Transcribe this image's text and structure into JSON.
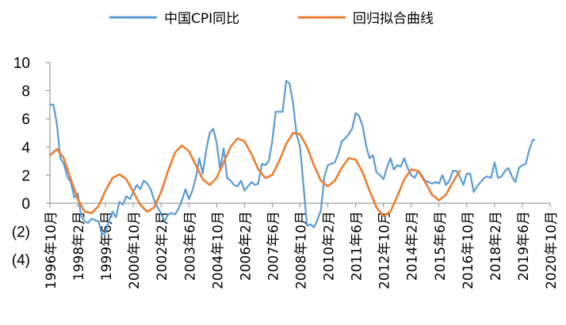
{
  "chart_data": {
    "type": "line",
    "title": "",
    "xlabel": "",
    "ylabel": "",
    "ylim": [
      -4,
      10
    ],
    "yticks": [
      10,
      8,
      6,
      4,
      2,
      0,
      -2,
      -4
    ],
    "ytick_labels": [
      "10",
      "8",
      "6",
      "4",
      "2",
      "0",
      "(2)",
      "(4)"
    ],
    "xticks": [
      {
        "x": "1996-10",
        "label": "1996年10月"
      },
      {
        "x": "1998-02",
        "label": "1998年2月"
      },
      {
        "x": "1999-06",
        "label": "1999年6月"
      },
      {
        "x": "2000-10",
        "label": "2000年10月"
      },
      {
        "x": "2002-02",
        "label": "2002年2月"
      },
      {
        "x": "2003-06",
        "label": "2003年6月"
      },
      {
        "x": "2004-10",
        "label": "2004年10月"
      },
      {
        "x": "2006-02",
        "label": "2006年2月"
      },
      {
        "x": "2007-06",
        "label": "2007年6月"
      },
      {
        "x": "2008-10",
        "label": "2008年10月"
      },
      {
        "x": "2010-02",
        "label": "2010年2月"
      },
      {
        "x": "2011-06",
        "label": "2011年6月"
      },
      {
        "x": "2012-10",
        "label": "2012年10月"
      },
      {
        "x": "2014-02",
        "label": "2014年2月"
      },
      {
        "x": "2015-06",
        "label": "2015年6月"
      },
      {
        "x": "2016-10",
        "label": "2016年10月"
      },
      {
        "x": "2018-02",
        "label": "2018年2月"
      },
      {
        "x": "2019-06",
        "label": "2019年6月"
      },
      {
        "x": "2020-10",
        "label": "2020年10月"
      }
    ],
    "grid": false,
    "legend_position": "top",
    "series": [
      {
        "name": "中国CPI同比",
        "color": "#5b9bd5",
        "points": [
          [
            "1996-10",
            7.0
          ],
          [
            "1996-12",
            7.0
          ],
          [
            "1997-02",
            5.6
          ],
          [
            "1997-04",
            3.2
          ],
          [
            "1997-06",
            2.8
          ],
          [
            "1997-08",
            1.9
          ],
          [
            "1997-10",
            1.5
          ],
          [
            "1997-12",
            0.4
          ],
          [
            "1998-02",
            0.7
          ],
          [
            "1998-04",
            -0.9
          ],
          [
            "1998-06",
            -1.3
          ],
          [
            "1998-08",
            -1.4
          ],
          [
            "1998-10",
            -1.1
          ],
          [
            "1998-12",
            -1.2
          ],
          [
            "1999-02",
            -1.3
          ],
          [
            "1999-04",
            -2.2
          ],
          [
            "1999-06",
            -2.1
          ],
          [
            "1999-08",
            -1.2
          ],
          [
            "1999-10",
            -0.6
          ],
          [
            "1999-12",
            -1.0
          ],
          [
            "2000-02",
            0.1
          ],
          [
            "2000-04",
            -0.1
          ],
          [
            "2000-06",
            0.5
          ],
          [
            "2000-08",
            0.3
          ],
          [
            "2000-10",
            0.8
          ],
          [
            "2000-12",
            1.3
          ],
          [
            "2001-02",
            1.0
          ],
          [
            "2001-04",
            1.6
          ],
          [
            "2001-06",
            1.4
          ],
          [
            "2001-08",
            1.0
          ],
          [
            "2001-10",
            0.2
          ],
          [
            "2001-12",
            -0.3
          ],
          [
            "2002-02",
            -0.7
          ],
          [
            "2002-04",
            -1.3
          ],
          [
            "2002-06",
            -0.8
          ],
          [
            "2002-08",
            -0.7
          ],
          [
            "2002-10",
            -0.8
          ],
          [
            "2002-12",
            -0.4
          ],
          [
            "2003-02",
            0.2
          ],
          [
            "2003-04",
            1.0
          ],
          [
            "2003-06",
            0.3
          ],
          [
            "2003-08",
            0.9
          ],
          [
            "2003-10",
            1.8
          ],
          [
            "2003-12",
            3.2
          ],
          [
            "2004-02",
            2.1
          ],
          [
            "2004-04",
            3.8
          ],
          [
            "2004-06",
            5.0
          ],
          [
            "2004-08",
            5.3
          ],
          [
            "2004-10",
            4.3
          ],
          [
            "2004-12",
            2.4
          ],
          [
            "2005-02",
            3.9
          ],
          [
            "2005-04",
            1.8
          ],
          [
            "2005-06",
            1.6
          ],
          [
            "2005-08",
            1.3
          ],
          [
            "2005-10",
            1.2
          ],
          [
            "2005-12",
            1.6
          ],
          [
            "2006-02",
            0.9
          ],
          [
            "2006-04",
            1.2
          ],
          [
            "2006-06",
            1.5
          ],
          [
            "2006-08",
            1.3
          ],
          [
            "2006-10",
            1.4
          ],
          [
            "2006-12",
            2.8
          ],
          [
            "2007-02",
            2.7
          ],
          [
            "2007-04",
            3.0
          ],
          [
            "2007-06",
            4.4
          ],
          [
            "2007-08",
            6.5
          ],
          [
            "2007-10",
            6.5
          ],
          [
            "2007-12",
            6.5
          ],
          [
            "2008-02",
            8.7
          ],
          [
            "2008-04",
            8.5
          ],
          [
            "2008-06",
            7.1
          ],
          [
            "2008-08",
            4.9
          ],
          [
            "2008-10",
            4.0
          ],
          [
            "2008-12",
            1.2
          ],
          [
            "2009-02",
            -1.6
          ],
          [
            "2009-04",
            -1.5
          ],
          [
            "2009-06",
            -1.7
          ],
          [
            "2009-08",
            -1.2
          ],
          [
            "2009-10",
            -0.5
          ],
          [
            "2009-12",
            1.9
          ],
          [
            "2010-02",
            2.7
          ],
          [
            "2010-04",
            2.8
          ],
          [
            "2010-06",
            2.9
          ],
          [
            "2010-08",
            3.5
          ],
          [
            "2010-10",
            4.4
          ],
          [
            "2010-12",
            4.6
          ],
          [
            "2011-02",
            4.9
          ],
          [
            "2011-04",
            5.3
          ],
          [
            "2011-06",
            6.4
          ],
          [
            "2011-08",
            6.2
          ],
          [
            "2011-10",
            5.5
          ],
          [
            "2011-12",
            4.1
          ],
          [
            "2012-02",
            3.2
          ],
          [
            "2012-04",
            3.4
          ],
          [
            "2012-06",
            2.2
          ],
          [
            "2012-08",
            2.0
          ],
          [
            "2012-10",
            1.7
          ],
          [
            "2012-12",
            2.5
          ],
          [
            "2013-02",
            3.2
          ],
          [
            "2013-04",
            2.4
          ],
          [
            "2013-06",
            2.7
          ],
          [
            "2013-08",
            2.6
          ],
          [
            "2013-10",
            3.2
          ],
          [
            "2013-12",
            2.5
          ],
          [
            "2014-02",
            2.0
          ],
          [
            "2014-04",
            1.8
          ],
          [
            "2014-06",
            2.3
          ],
          [
            "2014-08",
            2.0
          ],
          [
            "2014-10",
            1.6
          ],
          [
            "2014-12",
            1.5
          ],
          [
            "2015-02",
            1.4
          ],
          [
            "2015-04",
            1.5
          ],
          [
            "2015-06",
            1.4
          ],
          [
            "2015-08",
            2.0
          ],
          [
            "2015-10",
            1.3
          ],
          [
            "2015-12",
            1.6
          ],
          [
            "2016-02",
            2.3
          ],
          [
            "2016-04",
            2.3
          ],
          [
            "2016-06",
            1.9
          ],
          [
            "2016-08",
            1.3
          ],
          [
            "2016-10",
            2.1
          ],
          [
            "2016-12",
            2.1
          ],
          [
            "2017-02",
            0.8
          ],
          [
            "2017-04",
            1.2
          ],
          [
            "2017-06",
            1.5
          ],
          [
            "2017-08",
            1.8
          ],
          [
            "2017-10",
            1.9
          ],
          [
            "2017-12",
            1.8
          ],
          [
            "2018-02",
            2.9
          ],
          [
            "2018-04",
            1.8
          ],
          [
            "2018-06",
            1.9
          ],
          [
            "2018-08",
            2.3
          ],
          [
            "2018-10",
            2.5
          ],
          [
            "2018-12",
            1.9
          ],
          [
            "2019-02",
            1.5
          ],
          [
            "2019-04",
            2.5
          ],
          [
            "2019-06",
            2.7
          ],
          [
            "2019-08",
            2.8
          ],
          [
            "2019-10",
            3.8
          ],
          [
            "2019-12",
            4.5
          ],
          [
            "2020-01",
            4.5
          ]
        ]
      },
      {
        "name": "回归拟合曲线",
        "color": "#ed7d31",
        "points": [
          [
            "1996-10",
            3.4
          ],
          [
            "1997-02",
            3.85
          ],
          [
            "1997-06",
            3.2
          ],
          [
            "1997-10",
            1.7
          ],
          [
            "1998-02",
            0.3
          ],
          [
            "1998-06",
            -0.6
          ],
          [
            "1998-10",
            -0.7
          ],
          [
            "1999-02",
            -0.2
          ],
          [
            "1999-06",
            0.9
          ],
          [
            "1999-10",
            1.8
          ],
          [
            "2000-02",
            2.05
          ],
          [
            "2000-06",
            1.7
          ],
          [
            "2000-10",
            0.8
          ],
          [
            "2001-02",
            -0.1
          ],
          [
            "2001-06",
            -0.6
          ],
          [
            "2001-10",
            -0.3
          ],
          [
            "2002-02",
            0.8
          ],
          [
            "2002-06",
            2.3
          ],
          [
            "2002-10",
            3.6
          ],
          [
            "2003-02",
            4.1
          ],
          [
            "2003-06",
            3.7
          ],
          [
            "2003-10",
            2.7
          ],
          [
            "2004-02",
            1.7
          ],
          [
            "2004-06",
            1.3
          ],
          [
            "2004-10",
            1.8
          ],
          [
            "2005-02",
            2.9
          ],
          [
            "2005-06",
            4.0
          ],
          [
            "2005-10",
            4.6
          ],
          [
            "2006-02",
            4.4
          ],
          [
            "2006-06",
            3.5
          ],
          [
            "2006-10",
            2.4
          ],
          [
            "2007-02",
            1.8
          ],
          [
            "2007-06",
            2.0
          ],
          [
            "2007-10",
            3.0
          ],
          [
            "2008-02",
            4.2
          ],
          [
            "2008-06",
            5.0
          ],
          [
            "2008-10",
            4.9
          ],
          [
            "2009-02",
            4.0
          ],
          [
            "2009-06",
            2.7
          ],
          [
            "2009-10",
            1.6
          ],
          [
            "2010-02",
            1.2
          ],
          [
            "2010-06",
            1.6
          ],
          [
            "2010-10",
            2.5
          ],
          [
            "2011-02",
            3.2
          ],
          [
            "2011-06",
            3.1
          ],
          [
            "2011-10",
            2.2
          ],
          [
            "2012-02",
            0.9
          ],
          [
            "2012-06",
            -0.3
          ],
          [
            "2012-10",
            -0.9
          ],
          [
            "2013-02",
            -0.6
          ],
          [
            "2013-06",
            0.5
          ],
          [
            "2013-10",
            1.7
          ],
          [
            "2014-02",
            2.4
          ],
          [
            "2014-06",
            2.3
          ],
          [
            "2014-10",
            1.5
          ],
          [
            "2015-02",
            0.6
          ],
          [
            "2015-06",
            0.2
          ],
          [
            "2015-10",
            0.6
          ],
          [
            "2016-02",
            1.5
          ],
          [
            "2016-06",
            2.3
          ]
        ]
      }
    ],
    "fit_series_note": ""
  }
}
